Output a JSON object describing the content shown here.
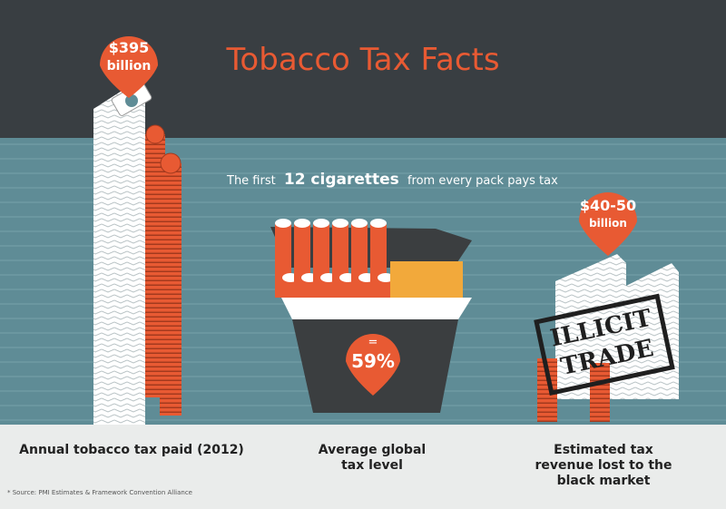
{
  "header": {
    "title": "Tobacco Tax Facts"
  },
  "subtitle": {
    "prefix": "The first",
    "highlight": "12 cigarettes",
    "suffix": "from every pack pays tax"
  },
  "panels": [
    {
      "badge": {
        "amount": "$395",
        "unit": "billion"
      },
      "label": "Annual tobacco tax paid (2012)"
    },
    {
      "badge": {
        "sign": "=",
        "amount": "59%"
      },
      "label": "Average global tax level"
    },
    {
      "badge": {
        "amount": "$40-50",
        "unit": "billion"
      },
      "stamp": [
        "ILLICIT",
        "TRADE"
      ],
      "label": "Estimated tax revenue lost to the black market"
    }
  ],
  "footer": {
    "source": "* Source: PMI Estimates & Framework Convention Alliance"
  }
}
